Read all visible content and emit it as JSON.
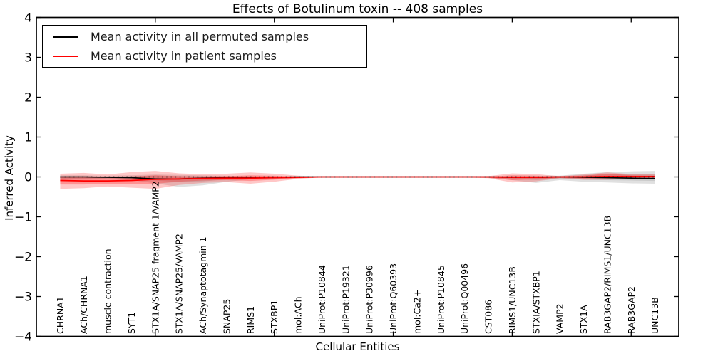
{
  "title": "Effects of Botulinum toxin -- 408 samples",
  "axes": {
    "x_title": "Cellular Entities",
    "y_title": "Inferred Activity"
  },
  "legend": {
    "items": [
      {
        "label": "Mean activity in all permuted samples",
        "color": "#000000"
      },
      {
        "label": "Mean activity in patient samples",
        "color": "#ff0000"
      }
    ]
  },
  "colors": {
    "permuted_line": "#000000",
    "patient_line": "#ff0000",
    "permuted_band": "#999999",
    "patient_band": "#ff0000",
    "zero_line": "#000000",
    "frame": "#000000"
  },
  "chart_data": {
    "type": "line",
    "title": "Effects of Botulinum toxin -- 408 samples",
    "xlabel": "Cellular Entities",
    "ylabel": "Inferred Activity",
    "xlim": [
      0,
      27
    ],
    "ylim": [
      -4,
      4
    ],
    "yticks": [
      -4,
      -3,
      -2,
      -1,
      0,
      1,
      2,
      3,
      4
    ],
    "xticks_major": [
      5,
      10,
      15,
      20,
      25
    ],
    "grid": false,
    "legend_position": "upper left",
    "zero_line": {
      "y": 0,
      "style": "dotted",
      "color": "#000000"
    },
    "categories": [
      "CHRNA1",
      "ACh/CHRNA1",
      "muscle contraction",
      "SYT1",
      "STX1A/SNAP25 fragment 1/VAMP2",
      "STX1A/SNAP25/VAMP2",
      "ACh/Synaptotagmin 1",
      "SNAP25",
      "RIMS1",
      "STXBP1",
      "mol:ACh",
      "UniProt:P10844",
      "UniProt:P19321",
      "UniProt:P30996",
      "UniProt:Q60393",
      "mol:Ca2+",
      "UniProt:P10845",
      "UniProt:Q00496",
      "CST086",
      "RIMS1/UNC13B",
      "STXIA/STXBP1",
      "VAMP2",
      "STX1A",
      "RAB3GAP2/RIMS1/UNC13B",
      "RAB3GAP2",
      "UNC13B"
    ],
    "x": [
      1,
      2,
      3,
      4,
      5,
      6,
      7,
      8,
      9,
      10,
      11,
      12,
      13,
      14,
      15,
      16,
      17,
      18,
      19,
      20,
      21,
      22,
      23,
      24,
      25,
      26
    ],
    "series": [
      {
        "name": "Mean activity in all permuted samples",
        "color": "#000000",
        "values": [
          0.0,
          0.0,
          -0.01,
          -0.02,
          -0.05,
          -0.05,
          -0.03,
          -0.02,
          -0.01,
          -0.01,
          0.0,
          0.0,
          0.0,
          0.0,
          0.0,
          0.0,
          0.0,
          0.0,
          0.0,
          -0.01,
          -0.01,
          0.0,
          -0.01,
          -0.02,
          -0.03,
          -0.04
        ]
      },
      {
        "name": "Mean activity in patient samples",
        "color": "#ff0000",
        "values": [
          -0.09,
          -0.1,
          -0.1,
          -0.09,
          -0.06,
          -0.05,
          -0.04,
          -0.03,
          -0.03,
          -0.02,
          -0.01,
          0.0,
          0.0,
          0.0,
          0.0,
          0.0,
          0.0,
          0.0,
          0.0,
          -0.01,
          -0.01,
          0.0,
          0.0,
          0.01,
          0.01,
          0.01
        ]
      }
    ],
    "bands": [
      {
        "name": "permuted-band-outer",
        "color": "#999999",
        "alpha": 0.3,
        "upper": [
          0.04,
          0.04,
          0.03,
          0.04,
          0.06,
          0.05,
          0.04,
          0.03,
          0.02,
          0.02,
          0.01,
          0.01,
          0.01,
          0.01,
          0.01,
          0.01,
          0.01,
          0.01,
          0.01,
          0.03,
          0.03,
          0.03,
          0.08,
          0.12,
          0.14,
          0.15
        ],
        "lower": [
          -0.07,
          -0.07,
          -0.06,
          -0.08,
          -0.16,
          -0.25,
          -0.21,
          -0.12,
          -0.06,
          -0.05,
          -0.02,
          -0.01,
          -0.01,
          -0.01,
          -0.01,
          -0.01,
          -0.01,
          -0.01,
          -0.02,
          -0.08,
          -0.15,
          -0.08,
          -0.12,
          -0.14,
          -0.16,
          -0.17
        ]
      },
      {
        "name": "permuted-band-inner",
        "color": "#999999",
        "alpha": 0.3,
        "upper": [
          0.02,
          0.02,
          0.01,
          0.02,
          0.03,
          0.02,
          0.02,
          0.01,
          0.01,
          0.01,
          0.0,
          0.0,
          0.0,
          0.0,
          0.0,
          0.0,
          0.0,
          0.0,
          0.0,
          0.01,
          0.01,
          0.01,
          0.04,
          0.06,
          0.07,
          0.08
        ],
        "lower": [
          -0.04,
          -0.04,
          -0.03,
          -0.04,
          -0.09,
          -0.13,
          -0.11,
          -0.06,
          -0.03,
          -0.02,
          -0.01,
          0.0,
          0.0,
          0.0,
          0.0,
          0.0,
          0.0,
          0.0,
          -0.01,
          -0.04,
          -0.08,
          -0.04,
          -0.07,
          -0.08,
          -0.09,
          -0.1
        ]
      },
      {
        "name": "patient-band-outer",
        "color": "#ff0000",
        "alpha": 0.22,
        "upper": [
          0.08,
          0.1,
          0.06,
          0.12,
          0.15,
          0.09,
          0.07,
          0.08,
          0.11,
          0.08,
          0.03,
          0.01,
          0.01,
          0.01,
          0.01,
          0.01,
          0.01,
          0.01,
          0.02,
          0.09,
          0.07,
          0.02,
          0.06,
          0.11,
          0.07,
          0.06
        ],
        "lower": [
          -0.3,
          -0.28,
          -0.24,
          -0.27,
          -0.3,
          -0.2,
          -0.15,
          -0.13,
          -0.17,
          -0.12,
          -0.05,
          -0.01,
          -0.01,
          -0.01,
          -0.01,
          -0.01,
          -0.01,
          -0.01,
          -0.03,
          -0.14,
          -0.11,
          -0.03,
          -0.07,
          -0.07,
          -0.05,
          -0.05
        ]
      },
      {
        "name": "patient-band-inner",
        "color": "#ff0000",
        "alpha": 0.26,
        "upper": [
          -0.01,
          0.0,
          -0.03,
          0.01,
          0.04,
          0.02,
          0.01,
          0.02,
          0.04,
          0.03,
          0.01,
          0.0,
          0.0,
          0.0,
          0.0,
          0.0,
          0.0,
          0.0,
          0.01,
          0.04,
          0.03,
          0.01,
          0.03,
          0.08,
          0.04,
          0.03
        ],
        "lower": [
          -0.19,
          -0.19,
          -0.17,
          -0.18,
          -0.17,
          -0.12,
          -0.09,
          -0.08,
          -0.1,
          -0.07,
          -0.03,
          -0.01,
          -0.01,
          -0.01,
          -0.01,
          -0.01,
          -0.01,
          -0.01,
          -0.02,
          -0.08,
          -0.06,
          -0.02,
          -0.04,
          -0.03,
          -0.02,
          -0.02
        ]
      }
    ]
  }
}
